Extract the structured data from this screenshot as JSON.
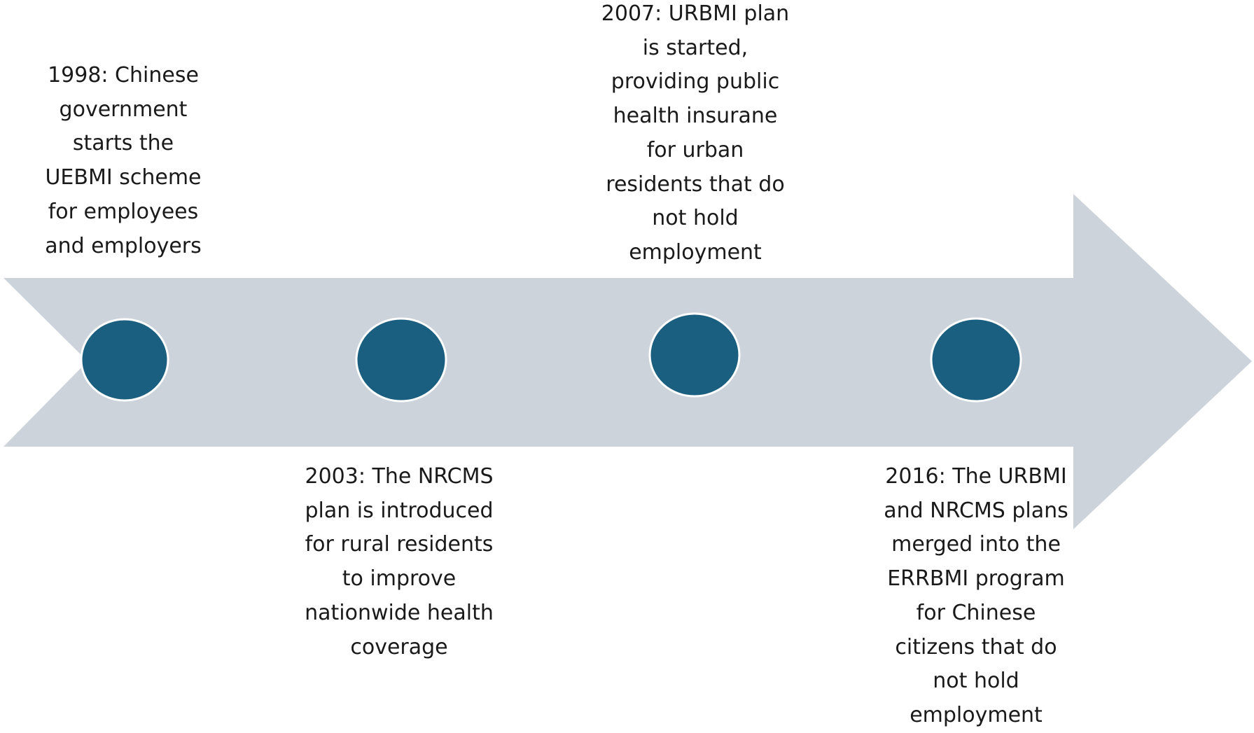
{
  "colors": {
    "arrow_fill": "#cdd3da",
    "milestone_fill": "#1a5e80",
    "milestone_stroke": "#ffffff",
    "text": "#1a1a1a"
  },
  "timeline": {
    "events": [
      {
        "text": "1998: Chinese\ngovernment\nstarts the\nUEBMI scheme\nfor employees\nand employers"
      },
      {
        "text": "2003: The NRCMS\nplan is introduced\nfor rural residents\nto improve\nnationwide health\ncoverage"
      },
      {
        "text": "2007: URBMI plan\nis started,\nproviding public\nhealth insurane\nfor urban\nresidents that do\nnot hold\nemployment"
      },
      {
        "text": "2016: The URBMI\nand NRCMS plans\nmerged into the\nERRBMI program\nfor Chinese\ncitizens that do\nnot hold\nemployment"
      }
    ]
  }
}
